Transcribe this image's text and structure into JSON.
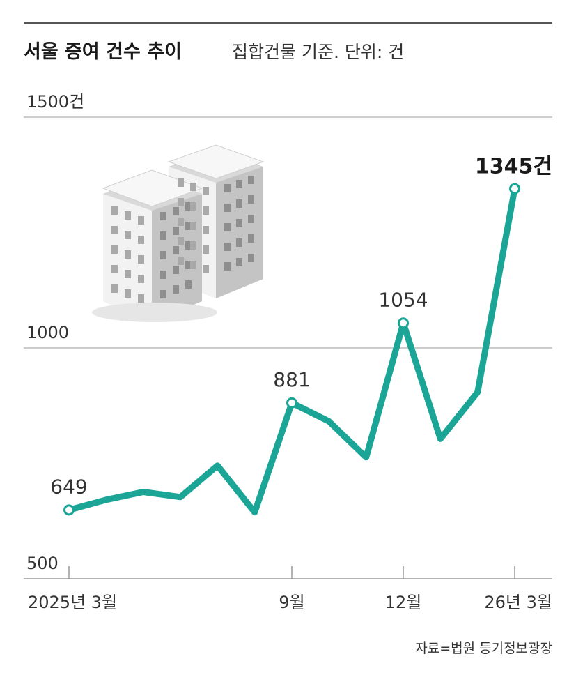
{
  "header": {
    "title": "서울 증여 건수 추이",
    "subtitle": "집합건물 기준. 단위: 건"
  },
  "source": "자료=법원 등기정보광장",
  "colors": {
    "line": "#1aa596",
    "text": "#222222",
    "grid": "#bbbbbb",
    "building_light": "#ededed",
    "building_dark": "#bdbdbd"
  },
  "illustration": "apartment-buildings-icon",
  "chart_data": {
    "type": "line",
    "title": "서울 증여 건수 추이",
    "subtitle": "집합건물 기준. 단위: 건",
    "xlabel": "",
    "ylabel": "",
    "x": [
      "2025-03",
      "2025-04",
      "2025-05",
      "2025-06",
      "2025-07",
      "2025-08",
      "2025-09",
      "2025-10",
      "2025-11",
      "2025-12",
      "2026-01",
      "2026-02",
      "2026-03"
    ],
    "x_tick_labels": [
      {
        "x": "2025-03",
        "label": "2025년 3월"
      },
      {
        "x": "2025-09",
        "label": "9월"
      },
      {
        "x": "2025-12",
        "label": "12월"
      },
      {
        "x": "2026-03",
        "label": "26년 3월"
      }
    ],
    "ylim": [
      500,
      1500
    ],
    "y_ticks": [
      {
        "value": 500,
        "label": "500"
      },
      {
        "value": 1000,
        "label": "1000"
      },
      {
        "value": 1500,
        "label": "1500건"
      }
    ],
    "grid": true,
    "series": [
      {
        "values": [
          649,
          671,
          688,
          677,
          745,
          644,
          881,
          841,
          763,
          1054,
          803,
          904,
          1345
        ]
      }
    ],
    "data_labels": [
      {
        "index": 0,
        "text": "649"
      },
      {
        "index": 6,
        "text": "881"
      },
      {
        "index": 9,
        "text": "1054"
      },
      {
        "index": 12,
        "text": "1345건"
      }
    ]
  }
}
